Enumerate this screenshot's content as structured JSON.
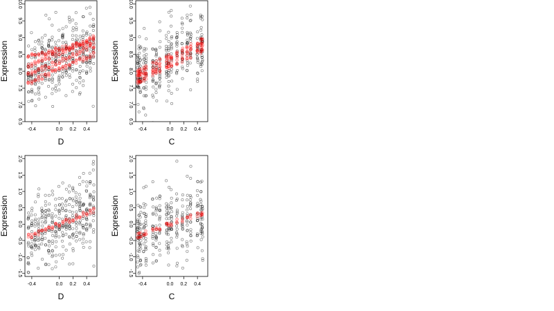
{
  "colors": {
    "points": "#000000",
    "fit": "#ff0000",
    "background": "#ffffff"
  },
  "chart_data": [
    {
      "type": "scatter",
      "panel": "top-left",
      "xlabel": "D",
      "ylabel": "Expression",
      "xlim": [
        -0.5,
        0.55
      ],
      "ylim": [
        6.5,
        10.1
      ],
      "xticks": [
        -0.4,
        0.0,
        0.2,
        0.4
      ],
      "xtick_labels": [
        "-0.4",
        "0.0",
        "0.2",
        "0.4"
      ],
      "yticks": [
        6.5,
        7.0,
        7.5,
        8.0,
        8.5,
        9.0,
        9.5,
        10.0
      ],
      "ytick_labels": [
        "6.5",
        "7.0",
        "7.5",
        "8.0",
        "8.5",
        "9.0",
        "9.5",
        "10.0"
      ],
      "x_levels": [
        -0.45,
        -0.4,
        -0.35,
        -0.3,
        -0.25,
        -0.2,
        -0.15,
        -0.1,
        -0.05,
        0.0,
        0.05,
        0.1,
        0.15,
        0.2,
        0.25,
        0.3,
        0.35,
        0.4,
        0.45,
        0.5
      ],
      "fit_lines": [
        {
          "intercept": 8.55,
          "slope": 0.9
        },
        {
          "intercept": 8.3,
          "slope": 0.9
        },
        {
          "intercept": 8.05,
          "slope": 0.9
        },
        {
          "intercept": 8.65,
          "slope": 0.5
        }
      ],
      "grid": false
    },
    {
      "type": "scatter",
      "panel": "top-right",
      "xlabel": "C",
      "ylabel": "Expression",
      "xlim": [
        -0.5,
        0.55
      ],
      "ylim": [
        6.5,
        10.1
      ],
      "xticks": [
        -0.4,
        0.0,
        0.2,
        0.4
      ],
      "xtick_labels": [
        "-0.4",
        "0.0",
        "0.2",
        "0.4"
      ],
      "yticks": [
        6.5,
        7.0,
        7.5,
        8.0,
        8.5,
        9.0,
        9.5,
        10.0
      ],
      "ytick_labels": [
        "6.5",
        "7.0",
        "7.5",
        "8.0",
        "8.5",
        "9.0",
        "9.5",
        "10.0"
      ],
      "x_levels": [
        -0.47,
        -0.45,
        -0.43,
        -0.38,
        -0.35,
        -0.25,
        -0.2,
        -0.15,
        -0.05,
        -0.02,
        0.02,
        0.1,
        0.18,
        0.25,
        0.3,
        0.4,
        0.45,
        0.47
      ],
      "fit_lines": [
        {
          "intercept": 8.45,
          "slope": 1.0
        },
        {
          "intercept": 8.3,
          "slope": 1.0
        },
        {
          "intercept": 8.15,
          "slope": 1.0
        }
      ],
      "grid": false
    },
    {
      "type": "scatter",
      "panel": "bottom-left",
      "xlabel": "D",
      "ylabel": "Expression",
      "xlim": [
        -0.5,
        0.55
      ],
      "ylim": [
        -1.6,
        2.1
      ],
      "xticks": [
        -0.4,
        0.0,
        0.2,
        0.4
      ],
      "xtick_labels": [
        "-0.4",
        "0.0",
        "0.2",
        "0.4"
      ],
      "yticks": [
        -1.5,
        -1.0,
        -0.5,
        0.0,
        0.5,
        1.0,
        1.5,
        2.0
      ],
      "ytick_labels": [
        "-1.5",
        "-1.0",
        "-0.5",
        "0.0",
        "0.5",
        "1.0",
        "1.5",
        "2.0"
      ],
      "x_levels": [
        -0.45,
        -0.4,
        -0.35,
        -0.3,
        -0.25,
        -0.2,
        -0.15,
        -0.1,
        -0.05,
        0.0,
        0.05,
        0.1,
        0.15,
        0.2,
        0.25,
        0.3,
        0.35,
        0.4,
        0.45,
        0.5
      ],
      "fit_lines": [
        {
          "intercept": 0.0,
          "slope": 0.85
        }
      ],
      "grid": false
    },
    {
      "type": "scatter",
      "panel": "bottom-right",
      "xlabel": "C",
      "ylabel": "Expression",
      "xlim": [
        -0.5,
        0.55
      ],
      "ylim": [
        -1.6,
        2.1
      ],
      "xticks": [
        -0.4,
        0.0,
        0.2,
        0.4
      ],
      "xtick_labels": [
        "-0.4",
        "0.0",
        "0.2",
        "0.4"
      ],
      "yticks": [
        -1.5,
        -1.0,
        -0.5,
        0.0,
        0.5,
        1.0,
        1.5,
        2.0
      ],
      "ytick_labels": [
        "-1.5",
        "-1.0",
        "-0.5",
        "0.0",
        "0.5",
        "1.0",
        "1.5",
        "2.0"
      ],
      "x_levels": [
        -0.47,
        -0.45,
        -0.43,
        -0.38,
        -0.35,
        -0.25,
        -0.2,
        -0.15,
        -0.05,
        -0.02,
        0.02,
        0.1,
        0.18,
        0.25,
        0.3,
        0.4,
        0.45,
        0.47
      ],
      "fit_lines": [
        {
          "intercept": 0.0,
          "slope": 0.75
        }
      ],
      "grid": false
    }
  ]
}
